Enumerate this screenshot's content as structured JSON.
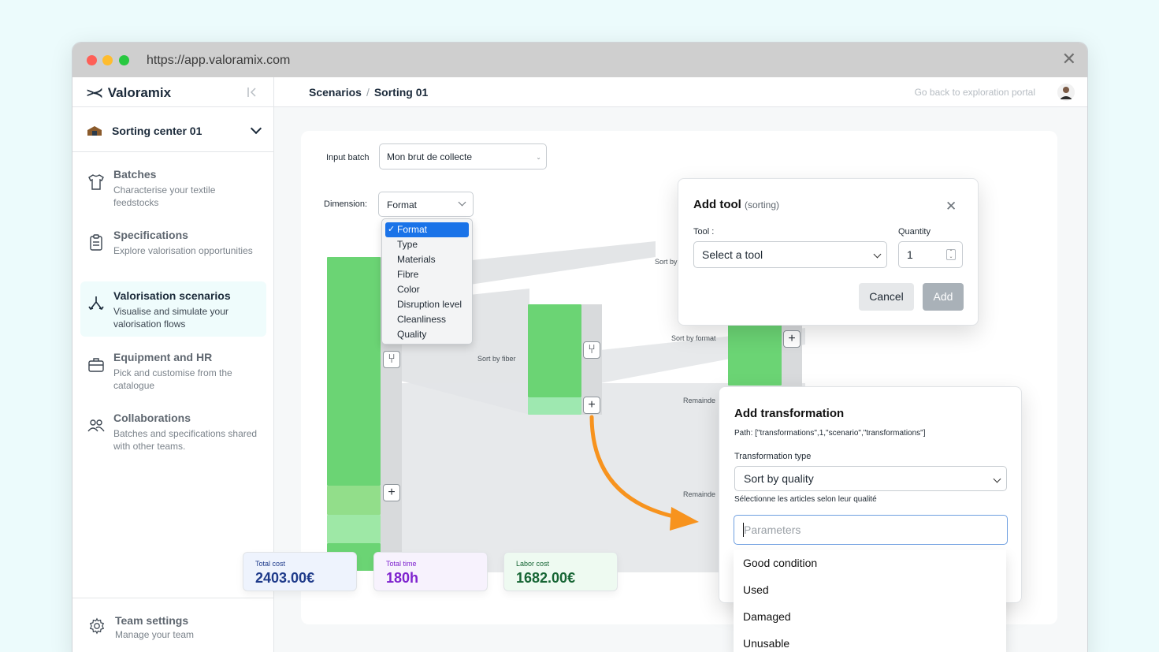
{
  "browser": {
    "url": "https://app.valoramix.com"
  },
  "app": {
    "logo_mark": ">≺",
    "name": "Valoramix"
  },
  "center": {
    "name": "Sorting center 01"
  },
  "nav": [
    {
      "title": "Batches",
      "desc": "Characterise your textile feedstocks",
      "icon": "tshirt-icon"
    },
    {
      "title": "Specifications",
      "desc": "Explore valorisation opportunities",
      "icon": "clipboard-icon"
    },
    {
      "title": "Valorisation scenarios",
      "desc": "Visualise and simulate your valorisation flows",
      "icon": "flow-split-icon"
    },
    {
      "title": "Equipment and HR",
      "desc": "Pick and customise from the catalogue",
      "icon": "briefcase-icon"
    },
    {
      "title": "Collaborations",
      "desc": "Batches and specifications shared with other teams.",
      "icon": "users-icon"
    }
  ],
  "team": {
    "title": "Team settings",
    "desc": "Manage your team"
  },
  "breadcrumb": {
    "root": "Scenarios",
    "sep": "/",
    "current": "Sorting 01"
  },
  "header": {
    "back_link": "Go back to exploration portal"
  },
  "scenario": {
    "input_batch_label": "Input batch",
    "input_batch_value": "Mon brut de collecte",
    "dimension_label": "Dimension:",
    "dimension_value": "Format",
    "dimension_options": [
      "Format",
      "Type",
      "Materials",
      "Fibre",
      "Color",
      "Disruption level",
      "Cleanliness",
      "Quality"
    ],
    "flow_labels": {
      "sort_fiber": "Sort by fiber",
      "sort_format": "Sort by format",
      "sort_partial": "Sort by",
      "remainder1": "Remainde",
      "remainder2": "Remainde"
    },
    "plus": "+",
    "split": "⑂"
  },
  "add_tool": {
    "title": "Add tool",
    "subtitle": "(sorting)",
    "tool_label": "Tool :",
    "tool_placeholder": "Select a tool",
    "quantity_label": "Quantity",
    "quantity_value": "1",
    "cancel": "Cancel",
    "add": "Add"
  },
  "add_transformation": {
    "title": "Add transformation",
    "path": "Path: [\"transformations\",1,\"scenario\",\"transformations\"]",
    "type_label": "Transformation type",
    "type_value": "Sort by quality",
    "help": "Sélectionne les articles selon leur qualité",
    "params_placeholder": "Parameters",
    "param_options": [
      "Good condition",
      "Used",
      "Damaged",
      "Unusable"
    ]
  },
  "stats": [
    {
      "label": "Total cost",
      "value": "2403.00€",
      "color": "#1e3a8a",
      "bg": "#eef3fd"
    },
    {
      "label": "Total time",
      "value": "180h",
      "color": "#7e22ce",
      "bg": "#f7f2fd"
    },
    {
      "label": "Labor cost",
      "value": "1682.00€",
      "color": "#166534",
      "bg": "#eefaf1"
    }
  ],
  "colors": {
    "accent_green": "#6bd474",
    "arrow_orange": "#f7931e",
    "select_blue": "#1a73e8"
  }
}
